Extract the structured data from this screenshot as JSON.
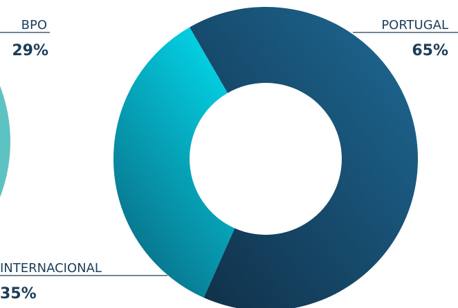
{
  "chart_data": [
    {
      "type": "pie",
      "title": "",
      "categories": [
        "PORTUGAL",
        "INTERNACIONAL"
      ],
      "series": [
        {
          "values": [
            65,
            35
          ]
        }
      ],
      "value_labels": [
        "65%",
        "35%"
      ],
      "colors": {
        "PORTUGAL": [
          "#102f47",
          "#1e6a96"
        ],
        "INTERNACIONAL": [
          "#0a6f86",
          "#04c8dc"
        ]
      },
      "style": "donut"
    },
    {
      "type": "pie",
      "title": "",
      "categories": [
        "BPO"
      ],
      "series": [
        {
          "values": [
            29
          ]
        }
      ],
      "value_labels": [
        "29%"
      ],
      "colors": {
        "BPO": "#5dc2c2",
        "other": "#1c4f73"
      },
      "style": "donut-cropped"
    }
  ]
}
